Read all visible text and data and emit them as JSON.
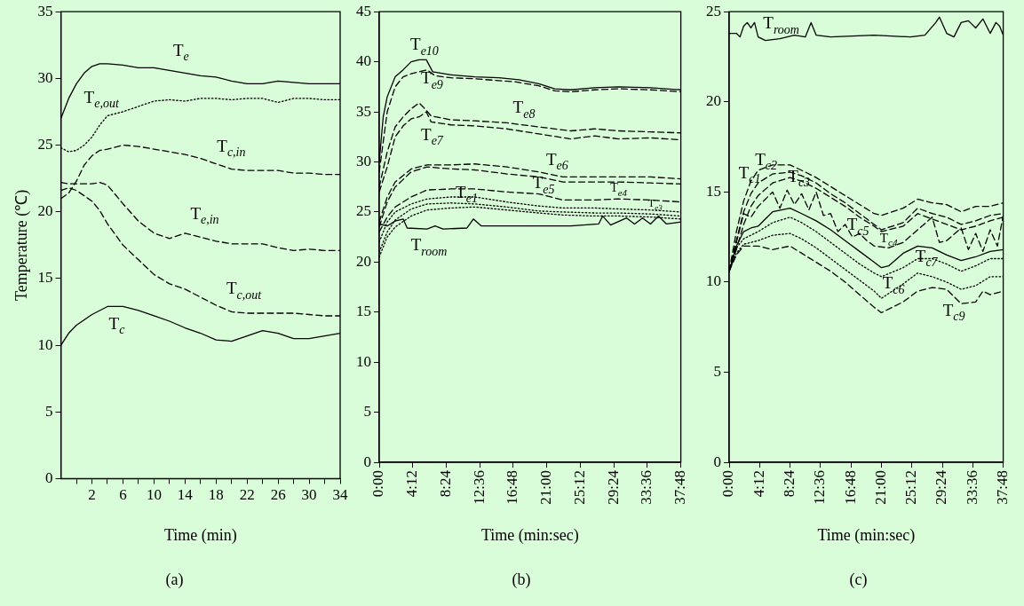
{
  "chart_data": [
    {
      "type": "line",
      "title": "(a)",
      "xlabel": "Time (min)",
      "ylabel": "Temperature (℃)",
      "marker": "none",
      "xlim": [
        -2,
        34
      ],
      "ylim": [
        0,
        35
      ],
      "xticks": [
        {
          "value": 0,
          "label": null
        },
        2,
        {
          "value": 4,
          "label": null
        },
        6,
        {
          "value": 8,
          "label": null
        },
        10,
        {
          "value": 12,
          "label": null
        },
        14,
        {
          "value": 16,
          "label": null
        },
        18,
        {
          "value": 20,
          "label": null
        },
        22,
        {
          "value": 24,
          "label": null
        },
        26,
        {
          "value": 28,
          "label": null
        },
        30,
        {
          "value": 32,
          "label": null
        },
        34
      ],
      "yticks": [
        0,
        5,
        10,
        15,
        20,
        25,
        30,
        35
      ],
      "x": [
        -2,
        -1,
        0,
        1,
        2,
        3,
        4,
        6,
        8,
        10,
        12,
        14,
        16,
        18,
        20,
        22,
        24,
        26,
        28,
        30,
        32,
        34
      ],
      "series": [
        {
          "name": "T$_{e}$",
          "color": "#000000",
          "line_style": "solid",
          "values": [
            27,
            28.5,
            29.6,
            30.4,
            30.9,
            31.1,
            31.1,
            31.0,
            30.8,
            30.8,
            30.6,
            30.4,
            30.2,
            30.1,
            29.8,
            29.6,
            29.6,
            29.8,
            29.7,
            29.6,
            29.6,
            29.6
          ]
        },
        {
          "name": "T$_{e,out}$",
          "color": "#000000",
          "line_style": "dotted",
          "values": [
            24.8,
            24.5,
            24.6,
            25.0,
            25.6,
            26.5,
            27.2,
            27.5,
            27.9,
            28.3,
            28.4,
            28.3,
            28.5,
            28.5,
            28.4,
            28.5,
            28.5,
            28.2,
            28.5,
            28.5,
            28.4,
            28.4
          ]
        },
        {
          "name": "T$_{c,in}$",
          "color": "#000000",
          "line_style": "dashed",
          "values": [
            21.0,
            21.4,
            22.3,
            23.5,
            24.2,
            24.6,
            24.7,
            25.0,
            24.9,
            24.7,
            24.5,
            24.3,
            24.0,
            23.6,
            23.2,
            23.1,
            23.1,
            23.1,
            22.9,
            22.9,
            22.8,
            22.8
          ]
        },
        {
          "name": "T$_{e,in}$",
          "color": "#000000",
          "line_style": "dashed",
          "values": [
            22.2,
            22.1,
            22.1,
            22.1,
            22.1,
            22.2,
            22.0,
            20.6,
            19.3,
            18.4,
            18.0,
            18.4,
            18.1,
            17.8,
            17.6,
            17.6,
            17.6,
            17.3,
            17.1,
            17.2,
            17.1,
            17.1
          ]
        },
        {
          "name": "T$_{c,out}$",
          "color": "#000000",
          "line_style": "dashed",
          "values": [
            21.6,
            21.8,
            21.6,
            21.2,
            20.8,
            20.1,
            19.1,
            17.5,
            16.4,
            15.3,
            14.6,
            14.2,
            13.6,
            13.0,
            12.5,
            12.4,
            12.4,
            12.4,
            12.4,
            12.3,
            12.2,
            12.2
          ]
        },
        {
          "name": "T$_{c}$",
          "color": "#000000",
          "line_style": "solid",
          "values": [
            10.0,
            10.9,
            11.5,
            11.9,
            12.3,
            12.6,
            12.9,
            12.9,
            12.6,
            12.2,
            11.8,
            11.3,
            10.9,
            10.4,
            10.3,
            10.7,
            11.1,
            10.9,
            10.5,
            10.5,
            10.7,
            10.9
          ]
        }
      ]
    },
    {
      "type": "line",
      "title": "(b)",
      "xlabel": "Time (min:sec)",
      "marker": "none",
      "xlim": [
        0,
        37.8
      ],
      "ylim": [
        0,
        45
      ],
      "xticks": [
        {
          "value": 0,
          "label": "0:00"
        },
        {
          "value": 4.2,
          "label": "4:12"
        },
        {
          "value": 8.4,
          "label": "8:24"
        },
        {
          "value": 12.6,
          "label": "12:36"
        },
        {
          "value": 16.8,
          "label": "16:48"
        },
        {
          "value": 21,
          "label": "21:00"
        },
        {
          "value": 25.2,
          "label": "25:12"
        },
        {
          "value": 29.4,
          "label": "29:24"
        },
        {
          "value": 33.6,
          "label": "33:36"
        },
        {
          "value": 37.8,
          "label": "37:48"
        }
      ],
      "yticks": [
        0,
        5,
        10,
        15,
        20,
        25,
        30,
        35,
        40,
        45
      ],
      "series": [
        {
          "name": "T$_{e10}$",
          "color": "#000000",
          "line_style": "solid",
          "x": [
            0,
            0.5,
            1,
            2,
            3,
            4,
            5,
            5.9,
            6.7,
            9,
            12,
            15,
            17.5,
            20,
            22,
            24,
            27,
            30,
            34,
            37.8
          ],
          "values": [
            30,
            34.5,
            36.5,
            38.5,
            39.2,
            40.0,
            40.2,
            40.2,
            39.0,
            38.7,
            38.5,
            38.4,
            38.2,
            37.8,
            37.3,
            37.2,
            37.4,
            37.5,
            37.4,
            37.2
          ]
        },
        {
          "name": "T$_{e9}$",
          "color": "#000000",
          "line_style": "dashed",
          "x": [
            0,
            1,
            2,
            3,
            4,
            6,
            7,
            9,
            12,
            17,
            20,
            22,
            24,
            27,
            30,
            34,
            37.8
          ],
          "values": [
            29,
            35,
            37.5,
            38.5,
            38.8,
            39.2,
            38.6,
            38.4,
            38.3,
            38.0,
            37.6,
            37.1,
            37.0,
            37.2,
            37.3,
            37.2,
            37.0
          ]
        },
        {
          "name": "T$_{e8}$",
          "color": "#000000",
          "line_style": "dashed",
          "x": [
            0,
            1,
            2,
            3,
            4,
            5,
            5.5,
            6.5,
            9,
            12,
            16,
            20,
            24,
            27,
            30,
            34,
            37.8
          ],
          "values": [
            27.5,
            31,
            33.5,
            34.5,
            35.3,
            35.9,
            35.5,
            34.6,
            34.2,
            34.1,
            33.9,
            33.5,
            33.1,
            33.3,
            33.1,
            33.0,
            32.9
          ]
        },
        {
          "name": "T$_{e7}$",
          "color": "#000000",
          "line_style": "dashed",
          "x": [
            0,
            1,
            2,
            3,
            4,
            5,
            5.9,
            6.5,
            9,
            12,
            16,
            20,
            24,
            27,
            30,
            34,
            37.8
          ],
          "values": [
            27,
            29.5,
            32.5,
            33.6,
            34.3,
            34.5,
            35,
            34,
            33.7,
            33.6,
            33.3,
            32.8,
            32.3,
            32.6,
            32.3,
            32.4,
            32.2
          ]
        },
        {
          "name": "T$_{e6}$",
          "color": "#000000",
          "line_style": "dashed",
          "x": [
            0,
            1,
            2,
            4,
            6,
            9,
            12,
            16,
            20,
            23,
            27,
            30,
            34,
            37.8
          ],
          "values": [
            24,
            26.5,
            28.0,
            29.3,
            29.7,
            29.7,
            29.8,
            29.5,
            29.0,
            28.5,
            28.5,
            28.5,
            28.5,
            28.3
          ]
        },
        {
          "name": "T$_{e5}$",
          "color": "#000000",
          "line_style": "dashed",
          "x": [
            0,
            1,
            2,
            4,
            6,
            9,
            12,
            16,
            20,
            23,
            27,
            30,
            34,
            37.8
          ],
          "values": [
            23.5,
            26,
            27.5,
            29.0,
            29.5,
            29.3,
            29.2,
            28.8,
            28.5,
            28.0,
            28.0,
            28.0,
            27.9,
            27.8
          ]
        },
        {
          "name": "T$_{e4}$",
          "color": "#000000",
          "line_style": "dashed",
          "x": [
            0,
            1,
            2,
            4,
            6,
            9,
            12,
            16,
            20,
            23,
            27,
            30,
            34,
            37.8
          ],
          "values": [
            23,
            24.5,
            25.5,
            26.5,
            27.2,
            27.3,
            27.3,
            27.0,
            26.8,
            26.2,
            26.2,
            26.3,
            26.2,
            26.0
          ]
        },
        {
          "name": "T$_{e3}$",
          "color": "#000000",
          "line_style": "dotted",
          "x": [
            0,
            1,
            2,
            4,
            6,
            9,
            12,
            16,
            20,
            23,
            27,
            30,
            34,
            37.8
          ],
          "values": [
            22,
            24,
            25,
            25.8,
            26.3,
            26.5,
            26.5,
            26.0,
            25.6,
            25.4,
            25.4,
            25.3,
            25.2,
            25.0
          ]
        },
        {
          "color": "#000000",
          "line_style": "dotted",
          "x": [
            0,
            1,
            2,
            4,
            6,
            9,
            12,
            16,
            20,
            23,
            27,
            30,
            34,
            37.8
          ],
          "values": [
            21,
            23,
            24.2,
            25.3,
            25.8,
            25.9,
            25.8,
            25.5,
            25.1,
            25.0,
            24.9,
            24.9,
            24.8,
            24.6
          ]
        },
        {
          "name": "T$_{e1}$",
          "color": "#000000",
          "line_style": "dotted",
          "x": [
            0,
            1,
            2,
            4,
            6,
            9,
            12,
            16,
            20,
            23,
            27,
            30,
            34,
            37.8
          ],
          "values": [
            20.5,
            22.5,
            23.5,
            24.6,
            25.2,
            25.4,
            25.5,
            25.2,
            24.9,
            24.7,
            24.6,
            24.6,
            24.5,
            24.3
          ]
        },
        {
          "name": "T$_{room}$",
          "color": "#000000",
          "line_style": "solid",
          "x": [
            0,
            1,
            2,
            3,
            3.5,
            6,
            7,
            8,
            11,
            11.8,
            12.8,
            16,
            20,
            24,
            27.5,
            28,
            29,
            31,
            32,
            33,
            34,
            35,
            36,
            37.8
          ],
          "values": [
            23.8,
            23.6,
            24.1,
            24.3,
            23.4,
            23.3,
            23.6,
            23.3,
            23.4,
            24.3,
            23.6,
            23.6,
            23.6,
            23.6,
            23.8,
            24.6,
            23.7,
            24.4,
            23.8,
            24.4,
            23.8,
            24.6,
            23.8,
            24.0
          ]
        }
      ]
    },
    {
      "type": "line",
      "title": "(c)",
      "xlabel": "Time (min:sec)",
      "marker": "none",
      "xlim": [
        0,
        37.8
      ],
      "ylim": [
        0,
        25
      ],
      "xticks": [
        {
          "value": 0,
          "label": "0:00"
        },
        {
          "value": 4.2,
          "label": "4:12"
        },
        {
          "value": 8.4,
          "label": "8:24"
        },
        {
          "value": 12.6,
          "label": "12:36"
        },
        {
          "value": 16.8,
          "label": "16:48"
        },
        {
          "value": 21,
          "label": "21:00"
        },
        {
          "value": 25.2,
          "label": "25:12"
        },
        {
          "value": 29.4,
          "label": "29:24"
        },
        {
          "value": 33.6,
          "label": "33:36"
        },
        {
          "value": 37.8,
          "label": "37:48"
        }
      ],
      "yticks": [
        0,
        5,
        10,
        15,
        20,
        25
      ],
      "series": [
        {
          "name": "T$_{room}$",
          "color": "#000000",
          "line_style": "solid",
          "x": [
            0,
            1,
            1.5,
            2,
            2.5,
            3,
            3.5,
            4,
            5,
            7,
            9,
            10.5,
            11.3,
            12,
            14,
            20,
            25,
            27,
            28.5,
            29,
            30,
            31,
            32,
            33,
            34,
            35,
            36,
            36.8,
            37.3,
            37.8
          ],
          "values": [
            23.8,
            23.8,
            23.6,
            24.2,
            24.4,
            24.1,
            24.4,
            23.6,
            23.4,
            23.5,
            23.7,
            23.6,
            24.4,
            23.7,
            23.6,
            23.7,
            23.6,
            23.7,
            24.4,
            24.7,
            23.8,
            23.6,
            24.4,
            24.5,
            24.1,
            24.6,
            23.8,
            24.4,
            24.2,
            23.7
          ]
        },
        {
          "name": "T$_{c1}$",
          "color": "#000000",
          "line_style": "dashed",
          "x": [
            0,
            1,
            2,
            3,
            4,
            6,
            8.4,
            10,
            12,
            14,
            16,
            18,
            20,
            21,
            24,
            26,
            28,
            30,
            32,
            34,
            36,
            37.8
          ],
          "values": [
            10.6,
            12.8,
            14.5,
            15.6,
            16.2,
            16.5,
            16.5,
            16.2,
            15.8,
            15.3,
            14.8,
            14.3,
            13.8,
            13.7,
            14.1,
            14.6,
            14.4,
            14.3,
            13.9,
            14.2,
            14.2,
            14.4
          ]
        },
        {
          "name": "T$_{c2}$",
          "color": "#000000",
          "line_style": "dashed",
          "x": [
            0,
            1,
            2,
            3,
            4,
            6,
            8.4,
            10,
            12,
            14,
            16,
            18,
            20,
            21,
            24,
            26,
            28,
            30,
            32,
            34,
            36,
            37.8
          ],
          "values": [
            10.6,
            12.3,
            13.9,
            14.9,
            15.5,
            16.0,
            16.1,
            15.9,
            15.5,
            14.9,
            14.4,
            13.8,
            13.2,
            12.9,
            13.3,
            14.1,
            13.8,
            13.6,
            13.2,
            13.4,
            13.7,
            13.8
          ]
        },
        {
          "name": "T$_{c3}$",
          "color": "#000000",
          "line_style": "dashed",
          "x": [
            0,
            1,
            2,
            3,
            4,
            6,
            8.4,
            10,
            12,
            14,
            16,
            18,
            20,
            21,
            24,
            26,
            28,
            30,
            32,
            34,
            36,
            37.8
          ],
          "values": [
            10.6,
            11.8,
            13.2,
            14.2,
            14.8,
            15.5,
            15.8,
            15.6,
            15.2,
            14.7,
            14.2,
            13.6,
            13.1,
            12.8,
            13.1,
            13.8,
            13.5,
            13.2,
            12.9,
            13.1,
            13.4,
            13.6
          ]
        },
        {
          "name": "T$_{c4}$",
          "color": "#000000",
          "line_style": "dashed",
          "x": [
            0,
            1,
            2,
            3,
            4,
            5,
            6,
            7,
            8,
            9,
            10,
            11,
            12,
            13,
            14,
            15,
            16,
            17,
            18,
            19,
            20,
            22,
            24,
            26,
            28,
            29,
            30,
            32,
            33,
            34,
            35,
            36,
            37,
            37.8
          ],
          "values": [
            10.6,
            12.2,
            13.8,
            13.6,
            14.2,
            14.6,
            15.0,
            14.1,
            15.1,
            14.3,
            14.9,
            14.0,
            15.0,
            13.7,
            13.8,
            12.8,
            13.2,
            12.5,
            12.7,
            12.3,
            12.0,
            11.9,
            12.2,
            12.9,
            13.6,
            12.2,
            12.3,
            13.0,
            11.8,
            12.7,
            11.7,
            12.9,
            12.0,
            13.7
          ]
        },
        {
          "name": "T$_{c5}$",
          "color": "#000000",
          "line_style": "solid",
          "x": [
            0,
            1,
            2,
            3,
            4,
            5,
            6,
            8.4,
            10,
            12,
            14,
            16,
            18,
            20,
            21,
            22,
            24,
            26,
            28,
            30,
            32,
            34,
            36,
            37.8
          ],
          "values": [
            10.6,
            12.0,
            12.8,
            13.0,
            13.1,
            13.5,
            13.9,
            14.1,
            13.8,
            13.4,
            12.9,
            12.3,
            11.7,
            11.1,
            10.8,
            10.9,
            11.6,
            12.0,
            11.9,
            11.5,
            11.2,
            11.4,
            11.7,
            11.8
          ]
        },
        {
          "name": "T$_{c6}$",
          "color": "#000000",
          "line_style": "dotted",
          "x": [
            0,
            1,
            2,
            4,
            6,
            8.4,
            10,
            12,
            14,
            16,
            18,
            20,
            21,
            24,
            26,
            28,
            30,
            32,
            34,
            36,
            37.8
          ],
          "values": [
            10.6,
            11.9,
            12.4,
            12.8,
            13.3,
            13.6,
            13.3,
            12.8,
            12.2,
            11.6,
            11.0,
            10.5,
            10.3,
            10.8,
            11.3,
            11.3,
            11.0,
            10.6,
            10.9,
            11.3,
            11.3
          ]
        },
        {
          "name": "T$_{c7}$",
          "color": "#000000",
          "line_style": "dotted",
          "x": [
            0,
            1,
            2,
            4,
            6,
            8.4,
            10,
            12,
            14,
            16,
            18,
            20,
            21,
            24,
            26,
            28,
            30,
            32,
            34,
            36,
            37.8
          ],
          "values": [
            10.6,
            11.6,
            12.1,
            12.3,
            12.6,
            12.7,
            12.4,
            11.9,
            11.3,
            10.7,
            10.1,
            9.5,
            9.1,
            9.9,
            10.5,
            10.3,
            10.0,
            9.6,
            9.8,
            10.3,
            10.3
          ]
        },
        {
          "name": "T$_{c9}$",
          "color": "#000000",
          "line_style": "dashed",
          "x": [
            0,
            1,
            2,
            4,
            6,
            8.4,
            10,
            12,
            14,
            16,
            18,
            20,
            21,
            24,
            26,
            28,
            30,
            31,
            32,
            34,
            35,
            36,
            37.8
          ],
          "values": [
            10.6,
            11.5,
            12.0,
            12.0,
            11.8,
            12.0,
            11.6,
            11.1,
            10.6,
            10.0,
            9.3,
            8.6,
            8.3,
            8.9,
            9.5,
            9.7,
            9.6,
            9.2,
            8.8,
            8.9,
            9.5,
            9.3,
            9.5
          ]
        }
      ]
    }
  ]
}
